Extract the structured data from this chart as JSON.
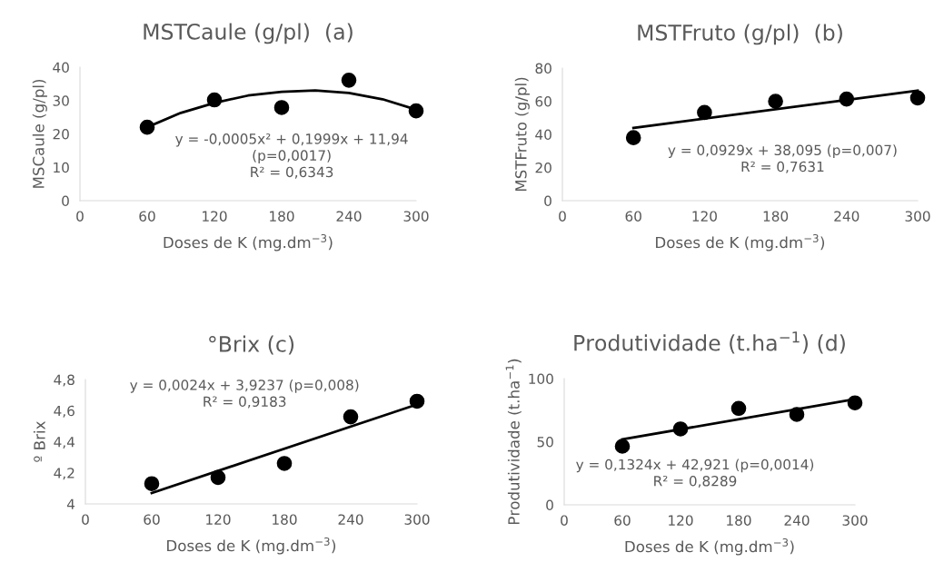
{
  "chart_data": [
    {
      "type": "scatter",
      "title": "MSTCaule (g/pl)  (a)",
      "xlabel": "Doses de K (mg.dm$^{−3}$)",
      "ylabel": "MSCaule (g/pl)",
      "x": [
        60,
        120,
        180,
        240,
        300
      ],
      "xlim": [
        0,
        300
      ],
      "xticks": [
        0,
        60,
        120,
        180,
        240,
        300
      ],
      "ylim": [
        0,
        40
      ],
      "yticks": [
        0,
        10,
        20,
        30,
        40
      ],
      "series": [
        {
          "marker": "circle",
          "color": "#000000",
          "values": [
            22,
            30.2,
            27.9,
            36.1,
            26.9
          ]
        },
        {
          "type": "line",
          "color": "#000000",
          "x": [
            60,
            90,
            120,
            150,
            180,
            210,
            240,
            270,
            300
          ],
          "values": [
            22,
            26.3,
            29.3,
            31.5,
            32.6,
            33,
            32.3,
            30.4,
            27.3
          ]
        }
      ],
      "annotations": [
        "y = -0,0005x² + 0,1999x + 11,94\n(p=0,0017)\nR² = 0,6343"
      ]
    },
    {
      "type": "scatter",
      "title": "MSTFruto (g/pl)  (b)",
      "xlabel": "Doses de K (mg.dm$^{−3}$)",
      "ylabel": "MSTFruto (g/pl)",
      "x": [
        60,
        120,
        180,
        240,
        300
      ],
      "xlim": [
        0,
        300
      ],
      "xticks": [
        0,
        60,
        120,
        180,
        240,
        300
      ],
      "ylim": [
        0,
        80
      ],
      "yticks": [
        0,
        20,
        40,
        60,
        80
      ],
      "series": [
        {
          "marker": "circle",
          "color": "#000000",
          "values": [
            38,
            53.2,
            60,
            61.3,
            62
          ]
        },
        {
          "type": "line",
          "color": "#000000",
          "x": [
            60,
            300
          ],
          "values": [
            43.9,
            66.4
          ]
        }
      ],
      "annotations": [
        "y = 0,0929x + 38,095 (p=0,007)\nR² = 0,7631"
      ]
    },
    {
      "type": "scatter",
      "title": "°Brix (c)",
      "xlabel": "Doses de K (mg.dm$^{−3}$)",
      "ylabel": "º Brix",
      "x": [
        60,
        120,
        180,
        240,
        300
      ],
      "xlim": [
        0,
        300
      ],
      "xticks": [
        0,
        60,
        120,
        180,
        240,
        300
      ],
      "ylim": [
        4,
        4.8
      ],
      "yticks": [
        4,
        {
          "value": 4.2,
          "label": "4,2"
        },
        {
          "value": 4.4,
          "label": "4,4"
        },
        {
          "value": 4.6,
          "label": "4,6"
        },
        {
          "value": 4.8,
          "label": "4,8"
        }
      ],
      "series": [
        {
          "marker": "circle",
          "color": "#000000",
          "values": [
            4.13,
            4.17,
            4.26,
            4.56,
            4.66
          ]
        },
        {
          "type": "line",
          "color": "#000000",
          "x": [
            60,
            300
          ],
          "values": [
            4.07,
            4.64
          ]
        }
      ],
      "annotations": [
        "y = 0,0024x + 3,9237 (p=0,008)\nR² = 0,9183"
      ]
    },
    {
      "type": "scatter",
      "title": "Produtividade (t.ha$^{−1}$) (d)",
      "xlabel": "Doses de K (mg.dm$^{−3}$)",
      "ylabel": "Produtividade (t.ha$^{−1}$)",
      "x": [
        60,
        120,
        180,
        240,
        300
      ],
      "xlim": [
        0,
        300
      ],
      "xticks": [
        0,
        60,
        120,
        180,
        240,
        300
      ],
      "ylim": [
        0,
        100
      ],
      "yticks": [
        0,
        50,
        100
      ],
      "series": [
        {
          "marker": "circle",
          "color": "#000000",
          "values": [
            46.4,
            60.1,
            76.4,
            71.6,
            80.8
          ]
        },
        {
          "type": "line",
          "color": "#000000",
          "x": [
            60,
            300
          ],
          "values": [
            51.9,
            83.7
          ]
        }
      ],
      "annotations": [
        "y = 0,1324x + 42,921 (p=0,0014)\nR² = 0,8289"
      ]
    }
  ]
}
